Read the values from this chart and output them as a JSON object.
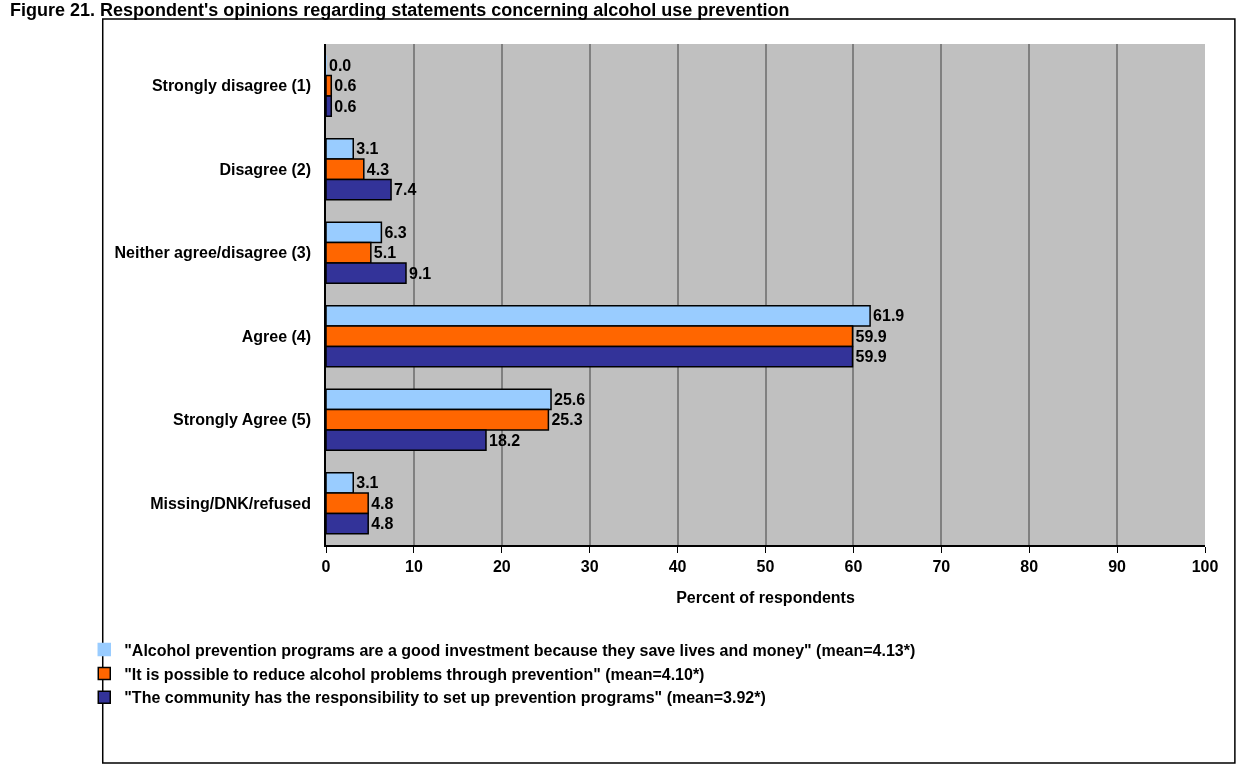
{
  "chart_data": {
    "type": "bar",
    "orientation": "horizontal",
    "title": "Figure 21. Respondent's opinions regarding statements concerning alcohol use prevention",
    "xlabel": "Percent of respondents",
    "categories": [
      "Strongly disagree (1)",
      "Disagree (2)",
      "Neither agree/disagree (3)",
      "Agree (4)",
      "Strongly Agree (5)",
      "Missing/DNK/refused"
    ],
    "series": [
      {
        "name": "\"Alcohol prevention programs are a good investment because they save lives and money\" (mean=4.13*)",
        "color": "#99ccff",
        "values": [
          0.0,
          3.1,
          6.3,
          61.9,
          25.6,
          3.1
        ],
        "value_labels": [
          "0.0",
          "3.1",
          "6.3",
          "61.9",
          "25.6",
          "3.1"
        ]
      },
      {
        "name": "\"It is possible to reduce alcohol problems through prevention\" (mean=4.10*)",
        "color": "#ff6600",
        "values": [
          0.6,
          4.3,
          5.1,
          59.9,
          25.3,
          4.8
        ],
        "value_labels": [
          "0.6",
          "4.3",
          "5.1",
          "59.9",
          "25.3",
          "4.8"
        ]
      },
      {
        "name": "\"The community has the responsibility to set up prevention programs\" (mean=3.92*)",
        "color": "#333399",
        "values": [
          0.6,
          7.4,
          9.1,
          59.9,
          18.2,
          4.8
        ],
        "value_labels": [
          "0.6",
          "7.4",
          "9.1",
          "59.9",
          "18.2",
          "4.8"
        ]
      }
    ],
    "xlim": [
      0,
      100
    ],
    "xticks": [
      0,
      10,
      20,
      30,
      40,
      50,
      60,
      70,
      80,
      90,
      100
    ],
    "grid": "x",
    "legend": "bottom"
  }
}
